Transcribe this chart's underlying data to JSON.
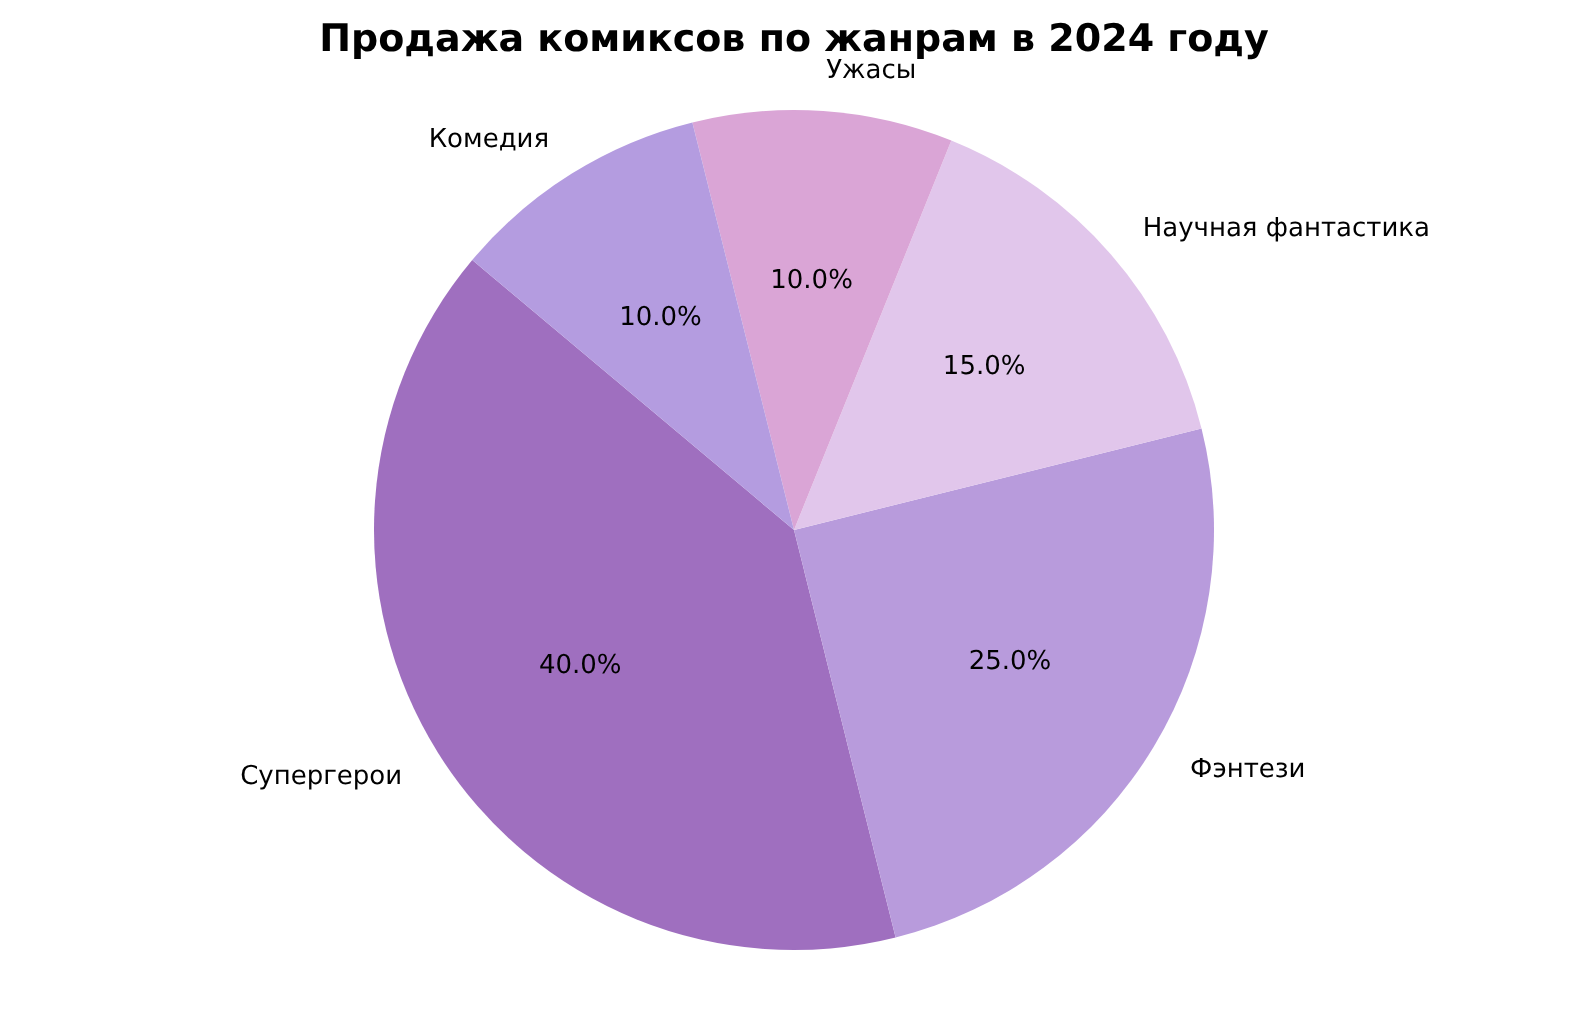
{
  "chart_data": {
    "type": "pie",
    "title": "Продажа комиксов по жанрам в 2024 году",
    "categories": [
      "Супергерои",
      "Фэнтези",
      "Научная фантастика",
      "Ужасы",
      "Комедия"
    ],
    "values": [
      40,
      25,
      15,
      10,
      10
    ],
    "colors": [
      "#9f6fbf",
      "#b89bdc",
      "#e1c6eb",
      "#daa5d6",
      "#b49ce0"
    ],
    "value_labels": [
      "40.0%",
      "25.0%",
      "15.0%",
      "10.0%",
      "10.0%"
    ]
  }
}
